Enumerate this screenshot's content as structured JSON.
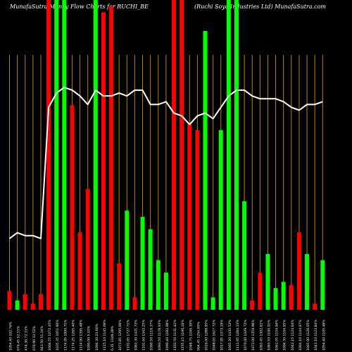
{
  "header": {
    "left": "MunafaSutra  Money Flow  Charts for RUCHI_BE",
    "right": "(Ruchi  Soya Industries Ltd) MunafaSutra.com"
  },
  "chart_data": {
    "type": "bar",
    "title": "MunafaSutra  Money Flow  Charts for RUCHI_BE",
    "subtitle": "(Ruchi  Soya Industries Ltd) MunafaSutra.com",
    "colors": {
      "up": "#00ff00",
      "down": "#ff0000",
      "grid": "#b8860b",
      "line": "#ffffff",
      "background": "#000000"
    },
    "categories": [
      "1054.40 102.76%",
      "679.45 52.51%",
      "474.30 72.31%",
      "676.90 33.52%",
      "643.50 51.14%",
      "1066.55 1272.45%",
      "1035.35 1051.90%",
      "1174.95 1000.71%",
      "1174.25 1265.40%",
      "1114.90 1395.48%",
      "1090.00 5.03%",
      "1094.30 23.60%",
      "1115.10 1145.09%",
      "6.31 1349.28%",
      "1073.85 1295.06%",
      "1101.65 1727.71%",
      "1083.30 1421.73%",
      "1101.60 1342.25%",
      "1090.50 1116.37%",
      "1093.50 1178.93%",
      "1090.40 1182.08%",
      "1103.50 1131.41%",
      "1155.15 1190.16%",
      "1048.75 1240.30%",
      "994.45 1254.95%",
      "1010.00 1288.95%",
      "1048.05 1627.72%",
      "1017.95 1373.19%",
      "1065.20 1432.52%",
      "1111.95 1284.13%",
      "1070.00 1429.72%",
      "1072.00 1359.98%",
      "1063.45 1302.61%",
      "1083.50 1190.01%",
      "1061.05 1154.94%",
      "1094.30 1104.95%",
      "1042.15 1124.64%",
      "1064.10 1144.97%",
      "1065.00 1126.05%",
      "1043.10 1123.84%",
      "1054.40 1105.48%"
    ],
    "series": [
      {
        "values": [
          6,
          3,
          5,
          2,
          5,
          100,
          100,
          100,
          66,
          25,
          39,
          100,
          96,
          98,
          15,
          32,
          4,
          30,
          26,
          16,
          12,
          100,
          100,
          60,
          58,
          90,
          4,
          58,
          100,
          100,
          35,
          3,
          12,
          18,
          7,
          9,
          8,
          25,
          18,
          2,
          16
        ],
        "directions": [
          "down",
          "up",
          "down",
          "down",
          "down",
          "down",
          "up",
          "up",
          "down",
          "down",
          "down",
          "up",
          "down",
          "down",
          "down",
          "up",
          "down",
          "up",
          "up",
          "up",
          "up",
          "down",
          "down",
          "down",
          "down",
          "up",
          "up",
          "up",
          "up",
          "up",
          "up",
          "down",
          "down",
          "up",
          "up",
          "up",
          "down",
          "down",
          "up",
          "down",
          "up"
        ]
      },
      {
        "values": [
          25,
          27,
          26,
          26,
          25,
          71,
          76,
          78,
          77,
          75,
          72,
          77,
          75,
          75,
          76,
          75,
          77,
          77,
          72,
          72,
          73,
          69,
          68,
          65,
          68,
          69,
          67,
          71,
          75,
          77,
          77,
          75,
          74,
          74,
          74,
          73,
          71,
          70,
          72,
          72,
          73
        ]
      }
    ],
    "ylim": [
      0,
      100
    ],
    "grid": true,
    "legend": "none"
  }
}
